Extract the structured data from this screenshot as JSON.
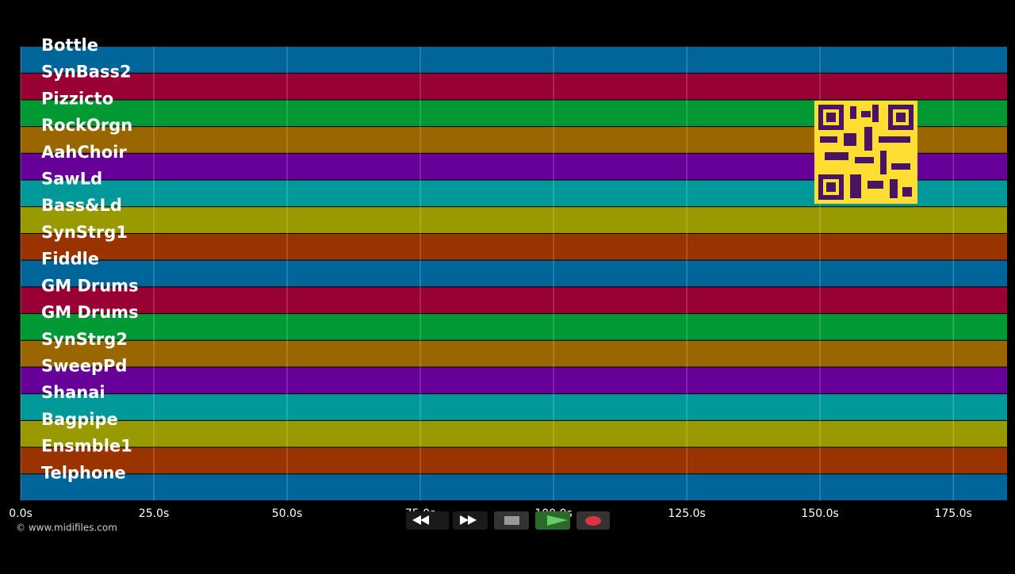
{
  "tracks": [
    {
      "name": "Bottle",
      "color": "#006699"
    },
    {
      "name": "SynBass2",
      "color": "#990033"
    },
    {
      "name": "Pizzicto",
      "color": "#009933"
    },
    {
      "name": "RockOrgn",
      "color": "#996600"
    },
    {
      "name": "AahChoir",
      "color": "#660099"
    },
    {
      "name": "SawLd",
      "color": "#009999"
    },
    {
      "name": "Bass&Ld",
      "color": "#999900"
    },
    {
      "name": "SynStrg1",
      "color": "#993300"
    },
    {
      "name": "Fiddle",
      "color": "#006699"
    },
    {
      "name": "GM Drums",
      "color": "#990033"
    },
    {
      "name": "GM Drums",
      "color": "#009933"
    },
    {
      "name": "SynStrg2",
      "color": "#996600"
    },
    {
      "name": "SweepPd",
      "color": "#660099"
    },
    {
      "name": "Shanai",
      "color": "#009999"
    },
    {
      "name": "Bagpipe",
      "color": "#999900"
    },
    {
      "name": "Ensmble1",
      "color": "#993300"
    },
    {
      "name": "Telphone",
      "color": "#006699"
    }
  ],
  "time_axis": {
    "xlim": [
      0,
      185.1
    ],
    "xticks": [
      {
        "value": 0,
        "label": "0.0s"
      },
      {
        "value": 25,
        "label": "25.0s"
      },
      {
        "value": 50,
        "label": "50.0s"
      },
      {
        "value": 75,
        "label": "75.0s"
      },
      {
        "value": 100,
        "label": "100.0s"
      },
      {
        "value": 125,
        "label": "125.0s"
      },
      {
        "value": 150,
        "label": "150.0s"
      },
      {
        "value": 175,
        "label": "175.0s"
      }
    ]
  },
  "footer": "© www.midifiles.com"
}
